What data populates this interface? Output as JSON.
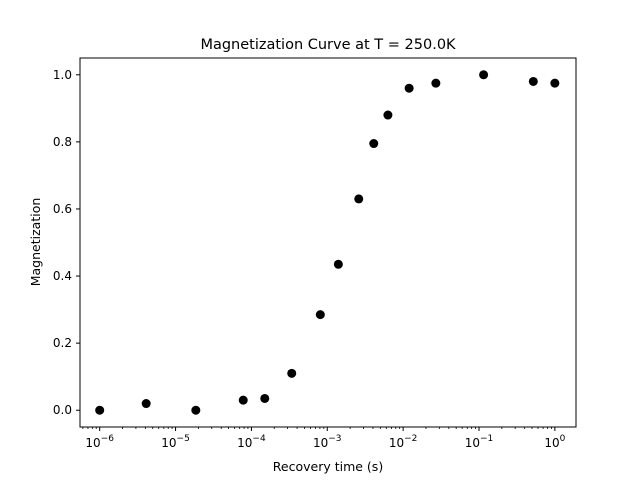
{
  "chart_data": {
    "type": "scatter",
    "title": "Magnetization Curve at T = 250.0K",
    "xlabel": "Recovery time (s)",
    "ylabel": "Magnetization",
    "xscale": "log",
    "xlim": [
      5.5e-07,
      1.9
    ],
    "ylim": [
      -0.05,
      1.05
    ],
    "grid": false,
    "marker_color": "#000000",
    "x_ticks": [
      {
        "value": 1e-06,
        "base": "10",
        "exp": "−6"
      },
      {
        "value": 1e-05,
        "base": "10",
        "exp": "−5"
      },
      {
        "value": 0.0001,
        "base": "10",
        "exp": "−4"
      },
      {
        "value": 0.001,
        "base": "10",
        "exp": "−3"
      },
      {
        "value": 0.01,
        "base": "10",
        "exp": "−2"
      },
      {
        "value": 0.1,
        "base": "10",
        "exp": "−1"
      },
      {
        "value": 1,
        "base": "10",
        "exp": "0"
      }
    ],
    "y_ticks": [
      {
        "value": 0.0,
        "label": "0.0"
      },
      {
        "value": 0.2,
        "label": "0.2"
      },
      {
        "value": 0.4,
        "label": "0.4"
      },
      {
        "value": 0.6,
        "label": "0.6"
      },
      {
        "value": 0.8,
        "label": "0.8"
      },
      {
        "value": 1.0,
        "label": "1.0"
      }
    ],
    "points": [
      {
        "x": 1e-06,
        "y": 0.0
      },
      {
        "x": 4.1e-06,
        "y": 0.02
      },
      {
        "x": 1.85e-05,
        "y": 0.0
      },
      {
        "x": 7.8e-05,
        "y": 0.03
      },
      {
        "x": 0.00015,
        "y": 0.035
      },
      {
        "x": 0.00034,
        "y": 0.11
      },
      {
        "x": 0.00081,
        "y": 0.285
      },
      {
        "x": 0.0014,
        "y": 0.435
      },
      {
        "x": 0.0026,
        "y": 0.63
      },
      {
        "x": 0.0041,
        "y": 0.795
      },
      {
        "x": 0.0063,
        "y": 0.88
      },
      {
        "x": 0.012,
        "y": 0.96
      },
      {
        "x": 0.027,
        "y": 0.975
      },
      {
        "x": 0.115,
        "y": 1.0
      },
      {
        "x": 0.52,
        "y": 0.98
      },
      {
        "x": 1.0,
        "y": 0.975
      }
    ]
  }
}
